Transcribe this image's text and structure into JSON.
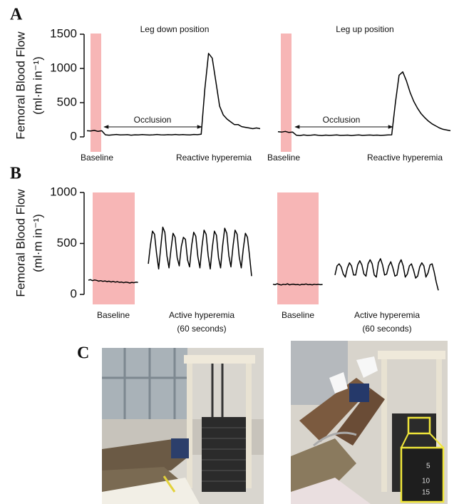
{
  "panel_labels": [
    "A",
    "B",
    "C"
  ],
  "photo_inset_labels": [
    "5",
    "10",
    "15"
  ],
  "chart_data": [
    {
      "type": "line",
      "title": "Leg down position",
      "ylabel": [
        "Femoral Blood Flow",
        "(ml·m in⁻¹)"
      ],
      "ylim": [
        0,
        1500
      ],
      "yticks": [
        0,
        500,
        1000,
        1500
      ],
      "color": "#000000",
      "annotations": [
        "Occlusion",
        "Baseline",
        "Reactive hyperemia"
      ],
      "values": [
        90,
        85,
        95,
        80,
        90,
        30,
        25,
        30,
        35,
        28,
        30,
        32,
        25,
        30,
        28,
        33,
        30,
        27,
        30,
        35,
        30,
        28,
        32,
        30,
        35,
        30,
        33,
        30,
        28,
        35,
        32,
        40,
        700,
        1220,
        1150,
        800,
        450,
        320,
        260,
        220,
        180,
        180,
        150,
        140,
        130,
        120,
        130,
        120
      ]
    },
    {
      "type": "line",
      "title": "Leg up position",
      "ylim": [
        0,
        1500
      ],
      "color": "#000000",
      "annotations": [
        "Occlusion",
        "Baseline",
        "Reactive hyperemia"
      ],
      "values": [
        75,
        70,
        80,
        65,
        70,
        25,
        20,
        28,
        22,
        25,
        30,
        24,
        20,
        26,
        22,
        25,
        28,
        22,
        24,
        26,
        20,
        25,
        28,
        22,
        25,
        27,
        24,
        26,
        22,
        25,
        28,
        30,
        500,
        900,
        950,
        820,
        650,
        520,
        420,
        340,
        280,
        230,
        190,
        160,
        130,
        110,
        100,
        90
      ]
    },
    {
      "type": "line",
      "ylabel": [
        "Femoral Blood Flow",
        "(ml·m in⁻¹)"
      ],
      "ylim": [
        0,
        1000
      ],
      "yticks": [
        0,
        500,
        1000
      ],
      "color": "#000000",
      "annotations": [
        "Baseline",
        "Active hyperemia",
        "(60 seconds)"
      ],
      "values": [
        140,
        145,
        135,
        142,
        138,
        130,
        135,
        128,
        132,
        125,
        130,
        122,
        128,
        120,
        125,
        118,
        122,
        115,
        120,
        118,
        112,
        118,
        115,
        120,
        118,
        null,
        null,
        null,
        null,
        300,
        480,
        620,
        590,
        400,
        250,
        460,
        660,
        610,
        380,
        260,
        440,
        600,
        560,
        360,
        280,
        470,
        560,
        540,
        340,
        270,
        480,
        610,
        570,
        370,
        260,
        470,
        630,
        590,
        380,
        250,
        460,
        620,
        580,
        360,
        260,
        480,
        650,
        600,
        380,
        270,
        470,
        630,
        590,
        370,
        260,
        450,
        600,
        560,
        380,
        180
      ]
    },
    {
      "type": "line",
      "ylim": [
        0,
        1000
      ],
      "color": "#000000",
      "annotations": [
        "Baseline",
        "Active hyperemia",
        "(60 seconds)"
      ],
      "values": [
        100,
        95,
        105,
        98,
        92,
        100,
        96,
        104,
        94,
        99,
        101,
        95,
        98,
        92,
        100,
        97,
        103,
        95,
        98,
        94,
        100,
        96,
        99,
        95,
        98,
        null,
        null,
        null,
        null,
        null,
        190,
        280,
        300,
        270,
        200,
        170,
        260,
        310,
        280,
        190,
        190,
        290,
        330,
        290,
        200,
        180,
        300,
        340,
        300,
        190,
        170,
        310,
        350,
        290,
        190,
        200,
        280,
        320,
        260,
        180,
        190,
        300,
        340,
        280,
        170,
        200,
        280,
        300,
        240,
        160,
        180,
        270,
        310,
        280,
        170,
        210,
        290,
        300,
        220,
        120,
        40
      ]
    }
  ]
}
